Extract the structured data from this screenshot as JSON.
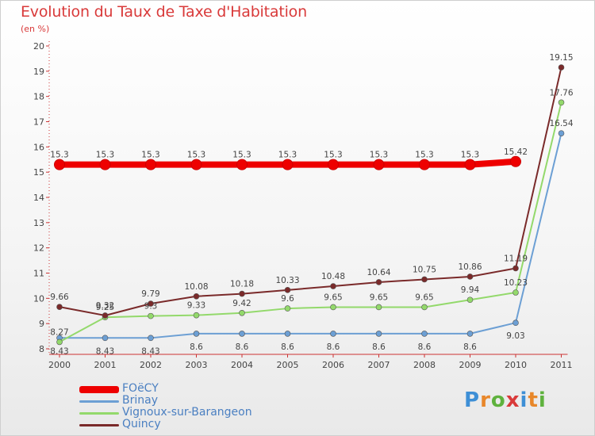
{
  "chart_data": {
    "type": "line",
    "title": "Evolution du Taux de Taxe d'Habitation",
    "subtitle": "(en %)",
    "x": [
      "2000",
      "2001",
      "2002",
      "2003",
      "2004",
      "2005",
      "2006",
      "2007",
      "2008",
      "2009",
      "2010",
      "2011"
    ],
    "ylim": [
      8,
      20
    ],
    "yticks": [
      8,
      9,
      10,
      11,
      12,
      13,
      14,
      15,
      16,
      17,
      18,
      19,
      20
    ],
    "grid": false,
    "legend_position": "bottom-left",
    "series": [
      {
        "name": "FOëCY",
        "color": "#ee0000",
        "values": [
          15.3,
          15.3,
          15.3,
          15.3,
          15.3,
          15.3,
          15.3,
          15.3,
          15.3,
          15.3,
          15.42,
          null
        ],
        "labels": [
          "15.3",
          "15.3",
          "15.3",
          "15.3",
          "15.3",
          "15.3",
          "15.3",
          "15.3",
          "15.3",
          "15.3",
          "15.42",
          ""
        ]
      },
      {
        "name": "Brinay",
        "color": "#6c9fd4",
        "values": [
          8.43,
          8.43,
          8.43,
          8.6,
          8.6,
          8.6,
          8.6,
          8.6,
          8.6,
          8.6,
          9.03,
          16.54
        ],
        "labels": [
          "8.43",
          "8.43",
          "8.43",
          "8.6",
          "8.6",
          "8.6",
          "8.6",
          "8.6",
          "8.6",
          "8.6",
          "9.03",
          "16.54"
        ]
      },
      {
        "name": "Vignoux-sur-Barangeon",
        "color": "#93d96b",
        "values": [
          8.27,
          9.25,
          9.3,
          9.33,
          9.42,
          9.6,
          9.65,
          9.65,
          9.65,
          9.94,
          10.23,
          17.76
        ],
        "labels": [
          "8.27",
          "9.25",
          "9.3",
          "9.33",
          "9.42",
          "9.6",
          "9.65",
          "9.65",
          "9.65",
          "9.94",
          "10.23",
          "17.76"
        ]
      },
      {
        "name": "Quincy",
        "color": "#7a2a2a",
        "values": [
          9.66,
          9.32,
          9.79,
          10.08,
          10.18,
          10.33,
          10.48,
          10.64,
          10.75,
          10.86,
          11.19,
          19.15
        ],
        "labels": [
          "9.66",
          "9.32",
          "9.79",
          "10.08",
          "10.18",
          "10.33",
          "10.48",
          "10.64",
          "10.75",
          "10.86",
          "11.19",
          "19.15"
        ]
      }
    ]
  },
  "logo": {
    "letters": [
      "P",
      "r",
      "o",
      "x",
      "i",
      "t",
      "i"
    ],
    "colors": [
      "#3e8fd6",
      "#e8872a",
      "#5fb23e",
      "#d93a3a",
      "#3e8fd6",
      "#e8872a",
      "#5fb23e"
    ]
  }
}
